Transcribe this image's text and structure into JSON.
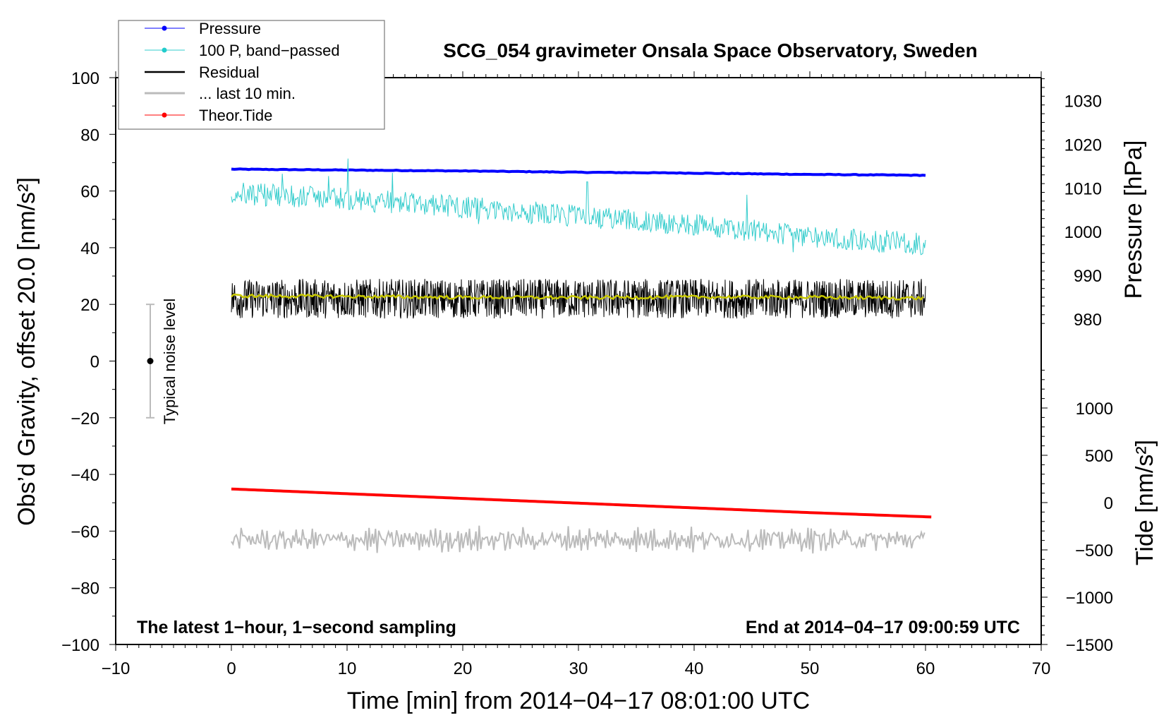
{
  "chart_data": {
    "type": "line",
    "title": "SCG_054 gravimeter Onsala Space Observatory, Sweden",
    "xlabel": "Time [min] from 2014−04−17 08:01:00 UTC",
    "ylabel_left": "Obs’d Gravity, offset 20.0 [nm/s²]",
    "ylabel_right_pressure": "Pressure [hPa]",
    "ylabel_right_tide": "Tide [nm/s²]",
    "xlim": [
      -10,
      70
    ],
    "ylim_left": [
      -100,
      100
    ],
    "x_ticks": [
      "−10",
      "0",
      "10",
      "20",
      "30",
      "40",
      "50",
      "60",
      "70"
    ],
    "x_tick_values": [
      -10,
      0,
      10,
      20,
      30,
      40,
      50,
      60,
      70
    ],
    "left_ticks": [
      "100",
      "80",
      "60",
      "40",
      "20",
      "0",
      "−20",
      "−40",
      "−60",
      "−80",
      "−100"
    ],
    "left_tick_values": [
      100,
      80,
      60,
      40,
      20,
      0,
      -20,
      -40,
      -60,
      -80,
      -100
    ],
    "pressure_ticks": [
      "1030",
      "1020",
      "1010",
      "1000",
      "990",
      "980"
    ],
    "pressure_tick_values": [
      1030,
      1020,
      1010,
      1000,
      990,
      980
    ],
    "tide_ticks": [
      "1000",
      "500",
      "0",
      "−500",
      "−1000",
      "−1500"
    ],
    "tide_tick_values": [
      1000,
      500,
      0,
      -500,
      -1000,
      -1500
    ],
    "annotations": {
      "bottom_left": "The latest 1−hour, 1−second sampling",
      "bottom_right": "End at 2014−04−17 09:00:59 UTC",
      "noise_label": "Typical noise level"
    },
    "noise_bar": {
      "center": 0,
      "half_range": 20
    },
    "legend": {
      "placement": "top-left",
      "entries": [
        "Pressure",
        "100 P, band−passed",
        "Residual",
        "... last 10 min.",
        "Theor.Tide"
      ]
    },
    "series": [
      {
        "name": "Pressure",
        "axis": "pressure_hPa",
        "color": "#0000ff",
        "x": [
          0,
          10,
          20,
          30,
          40,
          50,
          60
        ],
        "values": [
          1014.3,
          1014.1,
          1013.9,
          1013.6,
          1013.4,
          1013.1,
          1012.9
        ]
      },
      {
        "name": "100 P, band-passed",
        "axis": "left",
        "color": "#33cccc",
        "x": [
          0,
          10,
          20,
          30,
          40,
          50,
          60
        ],
        "mean": [
          60,
          58,
          55,
          52,
          49,
          45,
          42
        ],
        "noise_amplitude": 8
      },
      {
        "name": "Residual",
        "axis": "left",
        "color": "#000000",
        "x": [
          0,
          10,
          20,
          30,
          40,
          50,
          60
        ],
        "mean": [
          22,
          22,
          22,
          22,
          22,
          22,
          22
        ],
        "noise_amplitude": 7
      },
      {
        "name": "Residual smoothed",
        "axis": "left",
        "color": "#c8c800",
        "x": [
          0,
          10,
          20,
          30,
          40,
          50,
          60
        ],
        "mean": [
          23,
          22.8,
          22.5,
          22.4,
          22.6,
          22.5,
          22.2
        ],
        "noise_amplitude": 0.6
      },
      {
        "name": "... last 10 min.",
        "axis": "left",
        "color": "#bbbbbb",
        "x": [
          0,
          10,
          20,
          30,
          40,
          50,
          60
        ],
        "mean": [
          -63,
          -63,
          -63,
          -63,
          -63,
          -63,
          -63
        ],
        "noise_amplitude": 6
      },
      {
        "name": "Theor.Tide",
        "axis": "tide_nm_s2",
        "color": "#ff0000",
        "x": [
          0,
          10,
          20,
          30,
          40,
          50,
          60.5
        ],
        "values": [
          144,
          94,
          44,
          -6,
          -56,
          -106,
          -152
        ]
      }
    ]
  }
}
